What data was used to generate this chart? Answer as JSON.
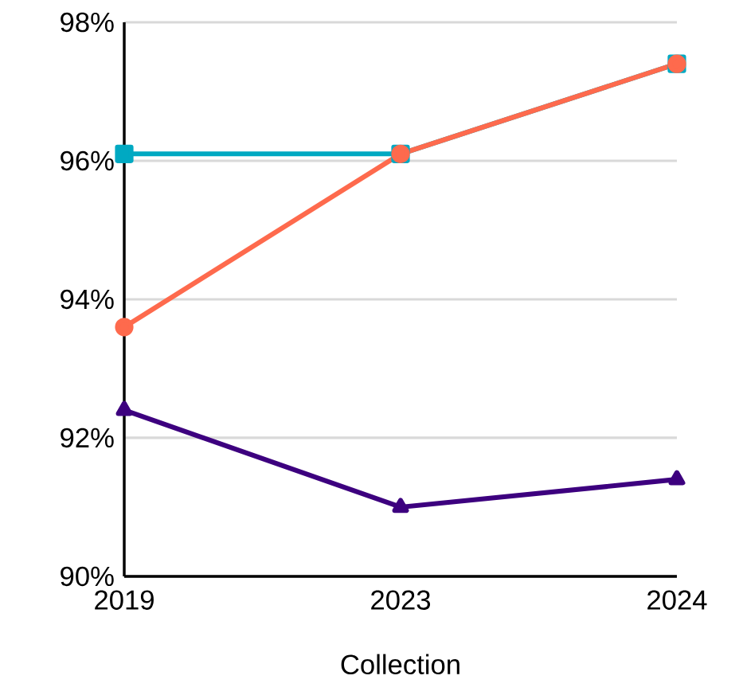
{
  "chart_data": {
    "type": "line",
    "xlabel": "Collection",
    "categories": [
      "2019",
      "2023",
      "2024"
    ],
    "series": [
      {
        "color": "#00a9c2",
        "marker": "square",
        "values": [
          96.1,
          96.1,
          97.4
        ]
      },
      {
        "color": "#fe6a4d",
        "marker": "circle",
        "values": [
          93.6,
          96.1,
          97.4
        ]
      },
      {
        "color": "#3d007f",
        "marker": "triangle",
        "values": [
          92.4,
          91.0,
          91.4
        ]
      }
    ],
    "ylim": [
      90,
      98
    ],
    "yticks": [
      {
        "value": 90,
        "label": "90%"
      },
      {
        "value": 92,
        "label": "92%"
      },
      {
        "value": 94,
        "label": "94%"
      },
      {
        "value": 96,
        "label": "96%"
      },
      {
        "value": 98,
        "label": "98%"
      }
    ],
    "grid": "y",
    "line_style": "solid"
  }
}
